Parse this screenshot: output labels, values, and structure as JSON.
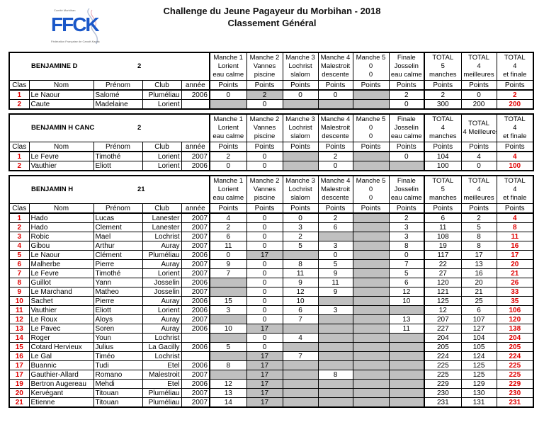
{
  "title": "Challenge du Jeune Pagayeur du Morbihan - 2018",
  "subtitle": "Classement Général",
  "logo": {
    "text": "FFCK",
    "tagline": "Fédération Française de Canoë-Kayak",
    "small": "Comité Morbihan"
  },
  "colors": {
    "grey_cell": "#c0c0c0",
    "rank_red": "#e00000",
    "logo_blue": "#1a57c8"
  },
  "columns": [
    "Clas",
    "Nom",
    "Prénom",
    "Club",
    "année",
    "Points",
    "Points",
    "Points",
    "Points",
    "Points",
    "Points",
    "Points",
    "Points",
    "Points"
  ],
  "sections": [
    {
      "category": "BENJAMINE D",
      "count": "2",
      "manches": [
        "Manche 1\nLorient\neau calme",
        "Manche 2\nVannes\npiscine",
        "Manche 3\nLochrist\nslalom",
        "Manche 4\nMalestroit\ndescente",
        "Manche 5\n0\n0",
        "Finale\nJosselin\neau calme",
        "TOTAL\n5\nmanches",
        "TOTAL\n4\nmeilleures",
        "TOTAL\n4\net finale"
      ],
      "rows": [
        {
          "rank": "1",
          "nom": "Le Naour",
          "prenom": "Salomé",
          "club": "Pluméliau",
          "annee": "2006",
          "pts": [
            "0",
            "2",
            "0",
            "0",
            "",
            "2"
          ],
          "grey": [
            0,
            1,
            0,
            0,
            1,
            0
          ],
          "t5": "2",
          "t4": "0",
          "tf": "2"
        },
        {
          "rank": "2",
          "nom": "Caute",
          "prenom": "Madelaine",
          "club": "Lorient",
          "annee": "",
          "pts": [
            "",
            "0",
            "",
            "",
            "",
            "0"
          ],
          "grey": [
            1,
            0,
            1,
            1,
            1,
            0
          ],
          "t5": "300",
          "t4": "200",
          "tf": "200"
        }
      ]
    },
    {
      "category": "BENJAMIN H CANC",
      "count": "2",
      "manches": [
        "Manche 1\nLorient\neau calme",
        "Manche 2\nVannes\npiscine",
        "Manche 3\nLochrist\nslalom",
        "Manche 4\nMalestroit\ndescente",
        "Manche 5\n0\n0",
        "Finale\nJosselin\neau calme",
        "TOTAL\n4\nmanches",
        "TOTAL\n4 Meilleures",
        "TOTAL\n4\net finale"
      ],
      "rows": [
        {
          "rank": "1",
          "nom": "Le Fevre",
          "prenom": "Timothé",
          "club": "Lorient",
          "annee": "2007",
          "pts": [
            "2",
            "0",
            "",
            "2",
            "",
            "0"
          ],
          "grey": [
            0,
            0,
            1,
            0,
            1,
            0
          ],
          "t5": "104",
          "t4": "4",
          "tf": "4"
        },
        {
          "rank": "2",
          "nom": "Vauthier",
          "prenom": "Eliott",
          "club": "Lorient",
          "annee": "2006",
          "pts": [
            "0",
            "0",
            "",
            "0",
            "",
            ""
          ],
          "grey": [
            0,
            0,
            1,
            0,
            1,
            1
          ],
          "t5": "100",
          "t4": "0",
          "tf": "100"
        }
      ]
    },
    {
      "category": "BENJAMIN H",
      "count": "21",
      "manches": [
        "Manche 1\nLorient\neau calme",
        "Manche 2\nVannes\npiscine",
        "Manche 3\nLochrist\nslalom",
        "Manche 4\nMalestroit\ndescente",
        "Manche 5\n0\n0",
        "Finale\nJosselin\neau calme",
        "TOTAL\n5\nmanches",
        "TOTAL\n4\nmeilleures",
        "TOTAL\n4\net finale"
      ],
      "rows": [
        {
          "rank": "1",
          "nom": "Hado",
          "prenom": "Lucas",
          "club": "Lanester",
          "annee": "2007",
          "pts": [
            "4",
            "0",
            "0",
            "2",
            "",
            "2"
          ],
          "grey": [
            0,
            0,
            0,
            0,
            1,
            0
          ],
          "t5": "6",
          "t4": "2",
          "tf": "4"
        },
        {
          "rank": "2",
          "nom": "Hado",
          "prenom": "Clement",
          "club": "Lanester",
          "annee": "2007",
          "pts": [
            "2",
            "0",
            "3",
            "6",
            "",
            "3"
          ],
          "grey": [
            0,
            0,
            0,
            0,
            1,
            0
          ],
          "t5": "11",
          "t4": "5",
          "tf": "8"
        },
        {
          "rank": "3",
          "nom": "Robic",
          "prenom": "Mael",
          "club": "Lochrist",
          "annee": "2007",
          "pts": [
            "6",
            "0",
            "2",
            "",
            "",
            "3"
          ],
          "grey": [
            0,
            0,
            0,
            1,
            1,
            0
          ],
          "t5": "108",
          "t4": "8",
          "tf": "11"
        },
        {
          "rank": "4",
          "nom": "Gibou",
          "prenom": "Arthur",
          "club": "Auray",
          "annee": "2007",
          "pts": [
            "11",
            "0",
            "5",
            "3",
            "",
            "8"
          ],
          "grey": [
            0,
            0,
            0,
            0,
            1,
            0
          ],
          "t5": "19",
          "t4": "8",
          "tf": "16"
        },
        {
          "rank": "5",
          "nom": "Le Naour",
          "prenom": "Clément",
          "club": "Pluméliau",
          "annee": "2006",
          "pts": [
            "0",
            "17",
            "",
            "0",
            "",
            "0"
          ],
          "grey": [
            0,
            1,
            1,
            0,
            1,
            0
          ],
          "t5": "117",
          "t4": "17",
          "tf": "17"
        },
        {
          "rank": "6",
          "nom": "Malherbe",
          "prenom": "Pierre",
          "club": "Auray",
          "annee": "2007",
          "pts": [
            "9",
            "0",
            "8",
            "5",
            "",
            "7"
          ],
          "grey": [
            0,
            0,
            0,
            0,
            1,
            0
          ],
          "t5": "22",
          "t4": "13",
          "tf": "20"
        },
        {
          "rank": "7",
          "nom": "Le Fevre",
          "prenom": "Timothé",
          "club": "Lorient",
          "annee": "2007",
          "pts": [
            "7",
            "0",
            "11",
            "9",
            "",
            "5"
          ],
          "grey": [
            0,
            0,
            0,
            0,
            1,
            0
          ],
          "t5": "27",
          "t4": "16",
          "tf": "21"
        },
        {
          "rank": "8",
          "nom": "Guillot",
          "prenom": "Yann",
          "club": "Josselin",
          "annee": "2006",
          "pts": [
            "",
            "0",
            "9",
            "11",
            "",
            "6"
          ],
          "grey": [
            1,
            0,
            0,
            0,
            1,
            0
          ],
          "t5": "120",
          "t4": "20",
          "tf": "26"
        },
        {
          "rank": "9",
          "nom": "Le Marchand",
          "prenom": "Matheo",
          "club": "Josselin",
          "annee": "2007",
          "pts": [
            "",
            "0",
            "12",
            "9",
            "",
            "12"
          ],
          "grey": [
            1,
            0,
            0,
            0,
            1,
            0
          ],
          "t5": "121",
          "t4": "21",
          "tf": "33"
        },
        {
          "rank": "10",
          "nom": "Sachet",
          "prenom": "Pierre",
          "club": "Auray",
          "annee": "2006",
          "pts": [
            "15",
            "0",
            "10",
            "",
            "",
            "10"
          ],
          "grey": [
            0,
            0,
            0,
            1,
            1,
            0
          ],
          "t5": "125",
          "t4": "25",
          "tf": "35"
        },
        {
          "rank": "11",
          "nom": "Vauthier",
          "prenom": "Eliott",
          "club": "Lorient",
          "annee": "2006",
          "pts": [
            "3",
            "0",
            "6",
            "3",
            "",
            ""
          ],
          "grey": [
            0,
            0,
            0,
            0,
            1,
            1
          ],
          "t5": "12",
          "t4": "6",
          "tf": "106"
        },
        {
          "rank": "12",
          "nom": "Le Roux",
          "prenom": "Aloys",
          "club": "Auray",
          "annee": "2007",
          "pts": [
            "",
            "0",
            "7",
            "",
            "",
            "13"
          ],
          "grey": [
            1,
            0,
            0,
            1,
            1,
            0
          ],
          "t5": "207",
          "t4": "107",
          "tf": "120"
        },
        {
          "rank": "13",
          "nom": "Le Pavec",
          "prenom": "Soren",
          "club": "Auray",
          "annee": "2006",
          "pts": [
            "10",
            "17",
            "",
            "",
            "",
            "11"
          ],
          "grey": [
            0,
            1,
            1,
            1,
            1,
            0
          ],
          "t5": "227",
          "t4": "127",
          "tf": "138"
        },
        {
          "rank": "14",
          "nom": "Roger",
          "prenom": "Youn",
          "club": "Lochrist",
          "annee": "",
          "pts": [
            "",
            "0",
            "4",
            "",
            "",
            ""
          ],
          "grey": [
            1,
            0,
            0,
            1,
            1,
            1
          ],
          "t5": "204",
          "t4": "104",
          "tf": "204"
        },
        {
          "rank": "15",
          "nom": "Cotard Hervieux",
          "prenom": "Julius",
          "club": "La Gacilly",
          "annee": "2006",
          "pts": [
            "5",
            "0",
            "",
            "",
            "",
            ""
          ],
          "grey": [
            0,
            0,
            1,
            1,
            1,
            1
          ],
          "t5": "205",
          "t4": "105",
          "tf": "205"
        },
        {
          "rank": "16",
          "nom": "Le Gal",
          "prenom": "Timéo",
          "club": "Lochrist",
          "annee": "",
          "pts": [
            "",
            "17",
            "7",
            "",
            "",
            ""
          ],
          "grey": [
            1,
            1,
            0,
            1,
            1,
            1
          ],
          "t5": "224",
          "t4": "124",
          "tf": "224"
        },
        {
          "rank": "17",
          "nom": "Buannic",
          "prenom": "Tudi",
          "club": "Etel",
          "annee": "2006",
          "pts": [
            "8",
            "17",
            "",
            "",
            "",
            ""
          ],
          "grey": [
            0,
            1,
            1,
            1,
            1,
            1
          ],
          "t5": "225",
          "t4": "125",
          "tf": "225"
        },
        {
          "rank": "17",
          "nom": "Gauthier-Allard",
          "prenom": "Romano",
          "club": "Malestroit",
          "annee": "2007",
          "pts": [
            "",
            "17",
            "",
            "8",
            "",
            ""
          ],
          "grey": [
            1,
            1,
            1,
            0,
            1,
            1
          ],
          "t5": "225",
          "t4": "125",
          "tf": "225"
        },
        {
          "rank": "19",
          "nom": "Bertron Augereau",
          "prenom": "Mehdi",
          "club": "Etel",
          "annee": "2006",
          "pts": [
            "12",
            "17",
            "",
            "",
            "",
            ""
          ],
          "grey": [
            0,
            1,
            1,
            1,
            1,
            1
          ],
          "t5": "229",
          "t4": "129",
          "tf": "229"
        },
        {
          "rank": "20",
          "nom": "Kervégant",
          "prenom": "Titouan",
          "club": "Pluméliau",
          "annee": "2007",
          "pts": [
            "13",
            "17",
            "",
            "",
            "",
            ""
          ],
          "grey": [
            0,
            1,
            1,
            1,
            1,
            1
          ],
          "t5": "230",
          "t4": "130",
          "tf": "230"
        },
        {
          "rank": "21",
          "nom": "Etienne",
          "prenom": "Titouan",
          "club": "Pluméliau",
          "annee": "2007",
          "pts": [
            "14",
            "17",
            "",
            "",
            "",
            ""
          ],
          "grey": [
            0,
            1,
            1,
            1,
            1,
            1
          ],
          "t5": "231",
          "t4": "131",
          "tf": "231"
        }
      ]
    }
  ]
}
